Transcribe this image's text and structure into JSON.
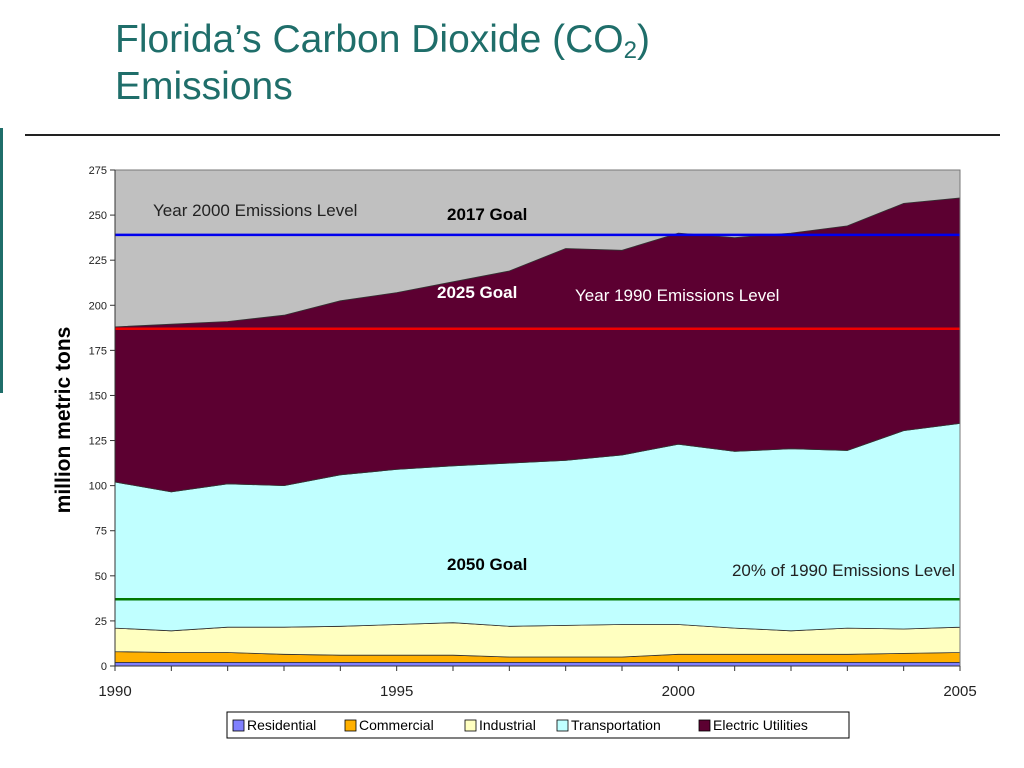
{
  "slide": {
    "title_main": "Florida’s Carbon Dioxide (CO",
    "title_sub": "2",
    "title_close": ")",
    "title_line2": "Emissions"
  },
  "colors": {
    "title": "#1f6e6a",
    "background_band": "#c0c0c0",
    "line_2017": "#0000ee",
    "line_2025": "#ee0000",
    "line_2050": "#007700"
  },
  "chart_data": {
    "type": "area",
    "stacked": true,
    "ylabel": "million metric tons",
    "xlabel": "",
    "x": [
      1990,
      1991,
      1992,
      1993,
      1994,
      1995,
      1996,
      1997,
      1998,
      1999,
      2000,
      2001,
      2002,
      2003,
      2004,
      2005
    ],
    "xticks": [
      "1990",
      "1995",
      "2000",
      "2005"
    ],
    "yticks": [
      "0",
      "25",
      "50",
      "75",
      "100",
      "125",
      "150",
      "175",
      "200",
      "225",
      "250",
      "275"
    ],
    "xlim": [
      1990,
      2005
    ],
    "ylim": [
      0,
      275
    ],
    "grid": false,
    "legend": "bottom",
    "series": [
      {
        "name": "Residential",
        "color": "#8080ff",
        "values": [
          2,
          2,
          2,
          2,
          2,
          2,
          2,
          2,
          2,
          2,
          2,
          2,
          2,
          2,
          2,
          2
        ]
      },
      {
        "name": "Commercial",
        "color": "#ffb000",
        "values": [
          6,
          5.5,
          5.5,
          4.5,
          4,
          4,
          4,
          3,
          3,
          3,
          4.5,
          4.5,
          4.5,
          4.5,
          5,
          5.5
        ]
      },
      {
        "name": "Industrial",
        "color": "#ffffc0",
        "values": [
          13,
          12,
          14,
          15,
          16,
          17,
          18,
          17,
          17.5,
          18,
          16.5,
          14.5,
          13,
          14.5,
          13.5,
          14
        ]
      },
      {
        "name": "Transportation",
        "color": "#c0ffff",
        "values": [
          81,
          77,
          79.5,
          78.5,
          84,
          86,
          87,
          90.5,
          91.5,
          94,
          100,
          98,
          101,
          98.5,
          110,
          113
        ]
      },
      {
        "name": "Electric Utilities",
        "color": "#5c0031",
        "values": [
          86,
          93,
          90,
          94.5,
          96.5,
          98,
          102,
          106.5,
          117.5,
          113.5,
          117,
          118.5,
          119.5,
          124.5,
          126,
          125
        ]
      }
    ],
    "reference_lines": [
      {
        "value": 239,
        "label": "2017 Goal",
        "level_label": "Year 2000 Emissions Level",
        "color": "#0000ee"
      },
      {
        "value": 187,
        "label": "2025 Goal",
        "level_label": "Year 1990 Emissions Level",
        "color": "#ee0000"
      },
      {
        "value": 37,
        "label": "2050 Goal",
        "level_label": "20% of 1990 Emissions Level",
        "color": "#007700"
      }
    ]
  }
}
